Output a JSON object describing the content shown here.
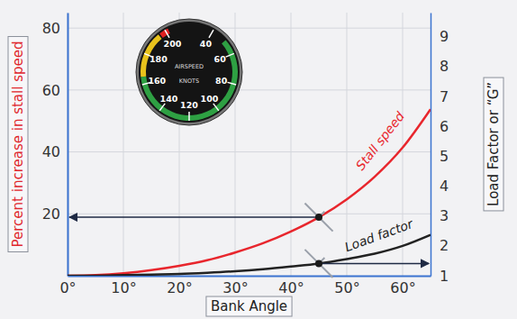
{
  "chart_data": {
    "type": "line",
    "xlabel": "Bank Angle",
    "ylabel": "Percent increase in stall speed",
    "y2label": "Load Factor or “G”",
    "x": [
      0,
      5,
      10,
      15,
      20,
      25,
      30,
      35,
      40,
      45,
      50,
      55,
      60,
      65
    ],
    "series": [
      {
        "name": "Stall speed",
        "color": "#e8262d",
        "values": [
          0,
          0.2,
          0.8,
          1.8,
          3.2,
          5.0,
          7.5,
          10.5,
          14.3,
          18.9,
          24.7,
          32.0,
          41.4,
          53.8
        ]
      },
      {
        "name": "Load factor",
        "color": "#222222",
        "axis": "y2",
        "values": [
          1,
          1.0,
          1.02,
          1.04,
          1.06,
          1.1,
          1.15,
          1.22,
          1.31,
          1.41,
          1.56,
          1.74,
          2.0,
          2.37
        ]
      }
    ],
    "xlim": [
      0,
      65
    ],
    "xticks": [
      {
        "value": 0,
        "label": "0°"
      },
      {
        "value": 10,
        "label": "10°"
      },
      {
        "value": 20,
        "label": "20°"
      },
      {
        "value": 30,
        "label": "30°"
      },
      {
        "value": 40,
        "label": "40°"
      },
      {
        "value": 50,
        "label": "50°"
      },
      {
        "value": 60,
        "label": "60°"
      }
    ],
    "ylim": [
      0,
      85
    ],
    "yticks": [
      20,
      40,
      60,
      80
    ],
    "y2lim": [
      1,
      9.8
    ],
    "y2ticks": [
      1,
      2,
      3,
      4,
      5,
      6,
      7,
      8,
      9
    ],
    "grid": true,
    "highlight_x": 45,
    "gauge": {
      "title": "AIRSPEED",
      "unit": "KNOTS",
      "ticks": [
        40,
        60,
        80,
        100,
        120,
        140,
        160,
        180,
        200
      ],
      "arcs": [
        {
          "from": 50,
          "to": 165,
          "color": "#2ea043"
        },
        {
          "from": 165,
          "to": 195,
          "color": "#e8c21c"
        },
        {
          "from": 196,
          "to": 202,
          "color": "#e02020"
        }
      ]
    }
  }
}
